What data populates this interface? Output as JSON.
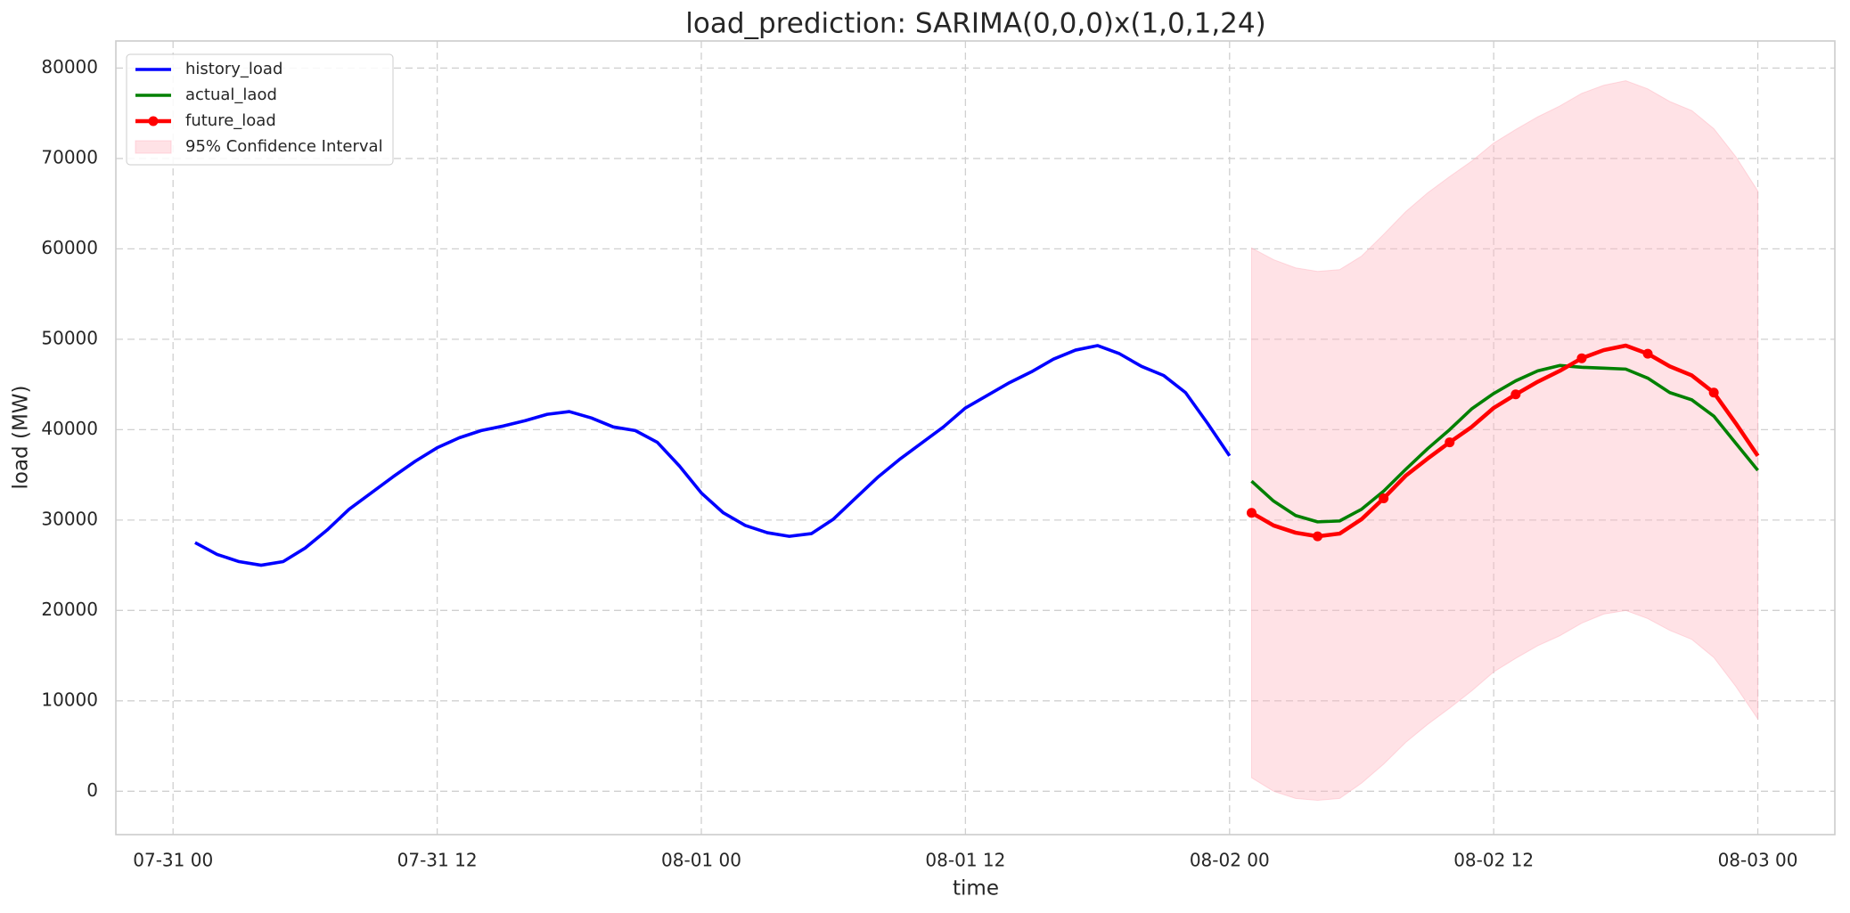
{
  "chart_data": {
    "type": "line",
    "title": "load_prediction: SARIMA(0,0,0)x(1,0,1,24)",
    "xlabel": "time",
    "ylabel": "load (MW)",
    "xlim": [
      -2.6,
      75.5
    ],
    "ylim": [
      -4800,
      83000
    ],
    "xticks": [
      {
        "value": 0,
        "label": "07-31 00"
      },
      {
        "value": 12,
        "label": "07-31 12"
      },
      {
        "value": 24,
        "label": "08-01 00"
      },
      {
        "value": 36,
        "label": "08-01 12"
      },
      {
        "value": 48,
        "label": "08-02 00"
      },
      {
        "value": 60,
        "label": "08-02 12"
      },
      {
        "value": 72,
        "label": "08-03 00"
      }
    ],
    "yticks": [
      0,
      10000,
      20000,
      30000,
      40000,
      50000,
      60000,
      70000,
      80000
    ],
    "grid": true,
    "legend": "upper left",
    "band": {
      "name": "95% Confidence Interval",
      "color": "#ffb6c1",
      "x": [
        49,
        50,
        51,
        52,
        53,
        54,
        55,
        56,
        57,
        58,
        59,
        60,
        61,
        62,
        63,
        64,
        65,
        66,
        67,
        68,
        69,
        70,
        71,
        72
      ],
      "lower": [
        1500,
        0,
        -800,
        -1000,
        -800,
        900,
        3000,
        5400,
        7400,
        9200,
        11100,
        13200,
        14700,
        16100,
        17200,
        18600,
        19600,
        20000,
        19100,
        17800,
        16800,
        14800,
        11600,
        8000
      ],
      "upper": [
        60100,
        58800,
        57900,
        57500,
        57700,
        59200,
        61600,
        64100,
        66200,
        68000,
        69700,
        71700,
        73200,
        74600,
        75800,
        77200,
        78100,
        78600,
        77700,
        76300,
        75300,
        73300,
        70200,
        66400
      ]
    },
    "series": [
      {
        "name": "history_load",
        "color": "#0000ff",
        "x": [
          1,
          2,
          3,
          4,
          5,
          6,
          7,
          8,
          9,
          10,
          11,
          12,
          13,
          14,
          15,
          16,
          17,
          18,
          19,
          20,
          21,
          22,
          23,
          24,
          25,
          26,
          27,
          28,
          29,
          30,
          31,
          32,
          33,
          34,
          35,
          36,
          37,
          38,
          39,
          40,
          41,
          42,
          43,
          44,
          45,
          46,
          47,
          48
        ],
        "values": [
          27500,
          26200,
          25400,
          25000,
          25400,
          26900,
          28900,
          31200,
          33000,
          34800,
          36500,
          38000,
          39100,
          39900,
          40400,
          41000,
          41700,
          42000,
          41300,
          40300,
          39900,
          38600,
          36000,
          33000,
          30800,
          29400,
          28600,
          28200,
          28500,
          30100,
          32400,
          34700,
          36700,
          38500,
          40300,
          42400,
          43800,
          45200,
          46400,
          47800,
          48800,
          49300,
          48400,
          47000,
          46000,
          44100,
          40700,
          37100
        ]
      },
      {
        "name": "actual_laod",
        "color": "#008000",
        "x": [
          49,
          50,
          51,
          52,
          53,
          54,
          55,
          56,
          57,
          58,
          59,
          60,
          61,
          62,
          63,
          64,
          65,
          66,
          67,
          68,
          69,
          70,
          71,
          72
        ],
        "values": [
          34300,
          32100,
          30500,
          29800,
          29900,
          31200,
          33200,
          35600,
          37900,
          40000,
          42300,
          44000,
          45400,
          46500,
          47100,
          46900,
          46800,
          46700,
          45700,
          44100,
          43300,
          41500,
          38500,
          35500
        ]
      },
      {
        "name": "future_load",
        "color": "#ff0000",
        "markevery": 3,
        "x": [
          49,
          50,
          51,
          52,
          53,
          54,
          55,
          56,
          57,
          58,
          59,
          60,
          61,
          62,
          63,
          64,
          65,
          66,
          67,
          68,
          69,
          70,
          71,
          72
        ],
        "values": [
          30800,
          29400,
          28600,
          28200,
          28500,
          30100,
          32400,
          34900,
          36800,
          38600,
          40300,
          42400,
          43900,
          45300,
          46500,
          47900,
          48800,
          49300,
          48400,
          47000,
          46000,
          44100,
          40700,
          37100
        ]
      }
    ]
  }
}
